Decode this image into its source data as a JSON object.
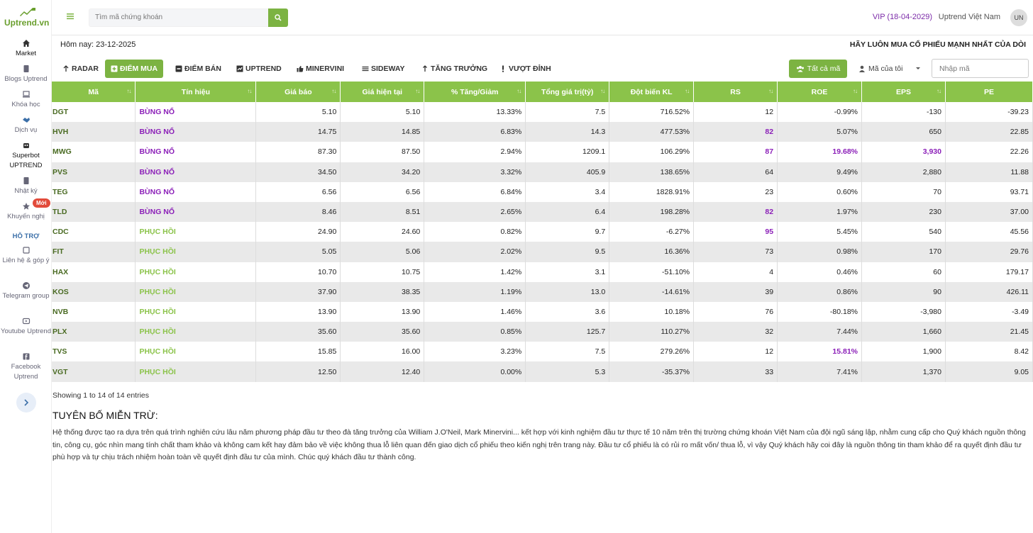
{
  "brand": {
    "name": "Uptrend.vn",
    "color": "#6a9f2e"
  },
  "sidebar": {
    "items": [
      {
        "label": "Market",
        "icon": "home-icon"
      },
      {
        "label": "Blogs Uptrend",
        "icon": "file-icon"
      },
      {
        "label": "Khóa học",
        "icon": "laptop-icon"
      },
      {
        "label": "Dịch vụ",
        "icon": "handshake-icon"
      },
      {
        "label": "Superbot UPTREND",
        "icon": "robot-icon"
      },
      {
        "label": "Nhật ký",
        "icon": "book-icon"
      },
      {
        "label": "Khuyến nghị",
        "icon": "star-icon",
        "badge": "Mới"
      }
    ],
    "support_heading": "HỖ TRỢ",
    "support_items": [
      {
        "label": "Liên hệ & góp ý",
        "icon": "edit-icon"
      },
      {
        "label": "Telegram group",
        "icon": "telegram-icon"
      },
      {
        "label": "Youtube Uptrend",
        "icon": "youtube-icon"
      },
      {
        "label": "Facebook Uptrend",
        "icon": "facebook-icon"
      }
    ]
  },
  "header": {
    "search_placeholder": "Tìm mã chứng khoán",
    "vip": "VIP (18-04-2029)",
    "user_name": "Uptrend Việt Nam",
    "avatar": "UN"
  },
  "subheader": {
    "today": "Hôm nay: 23-12-2025",
    "slogan": "HÃY LUÔN MUA CỔ PHIẾU MẠNH NHẤT CỦA DÒI"
  },
  "tabs": [
    {
      "label": "RADAR",
      "icon": "radar-icon",
      "active": false
    },
    {
      "label": "ĐIỂM MUA",
      "icon": "plus-square-icon",
      "active": true
    },
    {
      "label": "ĐIỂM BÁN",
      "icon": "minus-square-icon",
      "active": false
    },
    {
      "label": "UPTREND",
      "icon": "chart-icon",
      "active": false
    },
    {
      "label": "MINERVINI",
      "icon": "thumbs-up-icon",
      "active": false
    },
    {
      "label": "SIDEWAY",
      "icon": "lines-icon",
      "active": false
    },
    {
      "label": "TĂNG TRƯỞNG",
      "icon": "arrow-up-icon",
      "active": false
    },
    {
      "label": "VƯỢT ĐỈNH",
      "icon": "exclamation-icon",
      "active": false
    }
  ],
  "filters": {
    "all_label": "Tất cả mã",
    "mine_label": "Mã của tôi",
    "code_placeholder": "Nhập mã"
  },
  "table": {
    "columns": [
      "Mã",
      "Tín hiệu",
      "Giá báo",
      "Giá hiện tại",
      "% Tăng/Giảm",
      "Tổng giá trị(tỷ)",
      "Đột biến KL",
      "RS",
      "ROE",
      "EPS",
      "PE"
    ],
    "rows": [
      [
        "DGT",
        "BÙNG NỔ",
        "5.10",
        "5.10",
        "13.33%",
        "7.5",
        "716.52%",
        "12",
        "-0.99%",
        "-130",
        "-39.23"
      ],
      [
        "HVH",
        "BÙNG NỔ",
        "14.75",
        "14.85",
        "6.83%",
        "14.3",
        "477.53%",
        "82",
        "5.07%",
        "650",
        "22.85"
      ],
      [
        "MWG",
        "BÙNG NỔ",
        "87.30",
        "87.50",
        "2.94%",
        "1209.1",
        "106.29%",
        "87",
        "19.68%",
        "3,930",
        "22.26"
      ],
      [
        "PVS",
        "BÙNG NỔ",
        "34.50",
        "34.20",
        "3.32%",
        "405.9",
        "138.65%",
        "64",
        "9.49%",
        "2,880",
        "11.88"
      ],
      [
        "TEG",
        "BÙNG NỔ",
        "6.56",
        "6.56",
        "6.84%",
        "3.4",
        "1828.91%",
        "23",
        "0.60%",
        "70",
        "93.71"
      ],
      [
        "TLD",
        "BÙNG NỔ",
        "8.46",
        "8.51",
        "2.65%",
        "6.4",
        "198.28%",
        "82",
        "1.97%",
        "230",
        "37.00"
      ],
      [
        "CDC",
        "PHỤC HỒI",
        "24.90",
        "24.60",
        "0.82%",
        "9.7",
        "-6.27%",
        "95",
        "5.45%",
        "540",
        "45.56"
      ],
      [
        "FIT",
        "PHỤC HỒI",
        "5.05",
        "5.06",
        "2.02%",
        "9.5",
        "16.36%",
        "73",
        "0.98%",
        "170",
        "29.76"
      ],
      [
        "HAX",
        "PHỤC HỒI",
        "10.70",
        "10.75",
        "1.42%",
        "3.1",
        "-51.10%",
        "4",
        "0.46%",
        "60",
        "179.17"
      ],
      [
        "KOS",
        "PHỤC HỒI",
        "37.90",
        "38.35",
        "1.19%",
        "13.0",
        "-14.61%",
        "39",
        "0.86%",
        "90",
        "426.11"
      ],
      [
        "NVB",
        "PHỤC HỒI",
        "13.90",
        "13.90",
        "1.46%",
        "3.6",
        "10.18%",
        "76",
        "-80.18%",
        "-3,980",
        "-3.49"
      ],
      [
        "PLX",
        "PHỤC HỒI",
        "35.60",
        "35.60",
        "0.85%",
        "125.7",
        "110.27%",
        "32",
        "7.44%",
        "1,660",
        "21.45"
      ],
      [
        "TVS",
        "PHỤC HỒI",
        "15.85",
        "16.00",
        "3.23%",
        "7.5",
        "279.26%",
        "12",
        "15.81%",
        "1,900",
        "8.42"
      ],
      [
        "VGT",
        "PHỤC HỒI",
        "12.50",
        "12.40",
        "0.00%",
        "5.3",
        "-35.37%",
        "33",
        "7.41%",
        "1,370",
        "9.05"
      ]
    ],
    "highlight": [
      [
        1,
        7
      ],
      [
        2,
        7
      ],
      [
        2,
        8
      ],
      [
        2,
        9
      ],
      [
        5,
        7
      ],
      [
        6,
        7
      ],
      [
        12,
        8
      ]
    ]
  },
  "showing": "Showing 1 to 14 of 14 entries",
  "disclaimer": {
    "title": "TUYÊN BỐ MIỄN TRỪ:",
    "body": "Hệ thống được tạo ra dựa trên quá trình nghiên cứu lâu năm phương pháp đầu tư theo đà tăng trưởng của William J.O'Neil, Mark Minervini... kết hợp với kinh nghiệm đầu tư thực tế 10 năm trên thị trường chứng khoán Việt Nam của đội ngũ sáng lập, nhằm cung cấp cho Quý khách nguồn thông tin, công cụ, góc nhìn mang tính chất tham khảo và không cam kết hay đảm bảo về việc không thua lỗ liên quan đến giao dịch cổ phiếu theo kiến nghị trên trang này. Đầu tư cổ phiếu là có rủi ro mất vốn/ thua lỗ, vì vậy Quý khách hãy coi đây là nguồn thông tin tham khảo để ra quyết định đầu tư phù hợp và tự chịu trách nhiệm hoàn toàn về quyết định đầu tư của mình. Chúc quý khách đầu tư thành công."
  },
  "colors": {
    "green": "#7cb342",
    "header_green": "#8bc34a",
    "purple": "#8b1fb8",
    "vip": "#7b2aa8"
  }
}
